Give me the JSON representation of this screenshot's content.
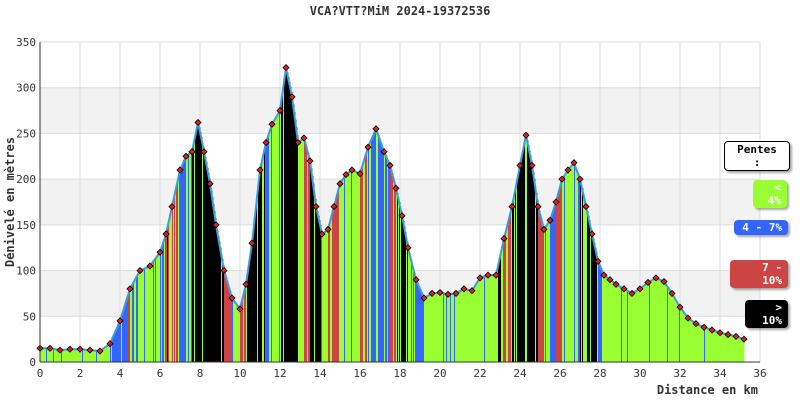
{
  "chart_data": {
    "type": "area",
    "title": "VCA?VTT?MiM 2024-19372536",
    "xlabel": "Distance en km",
    "ylabel": "Dénivelé en mètres",
    "xlim": [
      0,
      36
    ],
    "ylim": [
      0,
      350
    ],
    "x_ticks": [
      "0",
      "2",
      "4",
      "6",
      "8",
      "10",
      "12",
      "14",
      "16",
      "18",
      "20",
      "22",
      "24",
      "26",
      "28",
      "30",
      "32",
      "34",
      "36"
    ],
    "y_ticks": [
      "0",
      "50",
      "100",
      "150",
      "200",
      "250",
      "300",
      "350"
    ],
    "grid": true,
    "legend_placement": "right",
    "legend_title": "Pentes :",
    "legend": [
      {
        "label": "< 4%",
        "color": "#99ff33"
      },
      {
        "label": "4 - 7%",
        "color": "#3366ff"
      },
      {
        "label": "7 - 10%",
        "color": "#cc4444"
      },
      {
        "label": "> 10%",
        "color": "#000000"
      }
    ],
    "series": [
      {
        "x": [
          0,
          0.5,
          1,
          1.5,
          2,
          2.5,
          3,
          3.5,
          4,
          4.5,
          5,
          5.5,
          6,
          6.3,
          6.6,
          7,
          7.3,
          7.6,
          7.9,
          8.2,
          8.5,
          8.8,
          9.2,
          9.6,
          10,
          10.3,
          10.6,
          11,
          11.3,
          11.6,
          12,
          12.3,
          12.6,
          12.9,
          13.2,
          13.5,
          13.8,
          14.1,
          14.4,
          14.7,
          15,
          15.3,
          15.6,
          16,
          16.4,
          16.8,
          17.2,
          17.5,
          17.8,
          18.1,
          18.4,
          18.8,
          19.2,
          19.6,
          20,
          20.4,
          20.8,
          21.2,
          21.6,
          22,
          22.4,
          22.8,
          23.2,
          23.6,
          24,
          24.3,
          24.6,
          24.9,
          25.2,
          25.5,
          25.8,
          26.1,
          26.4,
          26.7,
          27,
          27.3,
          27.6,
          27.9,
          28.2,
          28.5,
          28.8,
          29.2,
          29.6,
          30,
          30.4,
          30.8,
          31.2,
          31.6,
          32,
          32.4,
          32.8,
          33.2,
          33.6,
          34,
          34.4,
          34.8,
          35.2
        ],
        "y": [
          15,
          15,
          13,
          14,
          14,
          13,
          12,
          20,
          45,
          80,
          100,
          105,
          120,
          140,
          170,
          210,
          225,
          230,
          262,
          230,
          195,
          150,
          100,
          70,
          58,
          85,
          130,
          210,
          240,
          260,
          275,
          322,
          290,
          240,
          245,
          220,
          170,
          140,
          145,
          170,
          195,
          205,
          210,
          206,
          235,
          255,
          230,
          215,
          190,
          160,
          125,
          90,
          70,
          75,
          76,
          74,
          75,
          80,
          78,
          92,
          95,
          95,
          135,
          170,
          215,
          248,
          215,
          170,
          145,
          155,
          175,
          200,
          210,
          218,
          200,
          170,
          140,
          110,
          95,
          90,
          85,
          80,
          75,
          80,
          87,
          92,
          88,
          75,
          60,
          48,
          42,
          38,
          35,
          32,
          30,
          28,
          25
        ]
      }
    ]
  }
}
